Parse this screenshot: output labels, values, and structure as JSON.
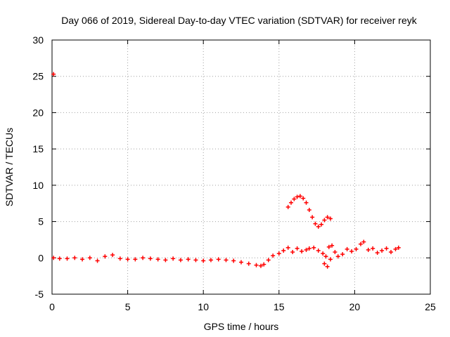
{
  "chart_data": {
    "type": "scatter",
    "title": "Day 066 of 2019, Sidereal Day-to-day VTEC variation (SDTVAR) for receiver reyk",
    "xlabel": "GPS time / hours",
    "ylabel": "SDTVAR / TECUs",
    "xlim": [
      0,
      25
    ],
    "ylim": [
      -5,
      30
    ],
    "xticks": [
      0,
      5,
      10,
      15,
      20,
      25
    ],
    "yticks": [
      -5,
      0,
      5,
      10,
      15,
      20,
      25,
      30
    ],
    "grid": true,
    "marker": "+",
    "series": [
      {
        "name": "SDTVAR",
        "color": "#ff0000",
        "x": [
          0.1,
          0.5,
          1.0,
          1.5,
          2.0,
          2.5,
          3.0,
          3.5,
          4.0,
          4.5,
          5.0,
          5.5,
          6.0,
          6.5,
          7.0,
          7.5,
          8.0,
          8.5,
          9.0,
          9.5,
          10.0,
          10.5,
          11.0,
          11.5,
          12.0,
          12.5,
          13.0,
          13.5,
          13.8,
          14.0,
          14.3,
          14.6,
          15.0,
          15.3,
          15.6,
          15.9,
          16.2,
          16.5,
          16.8,
          17.0,
          17.3,
          17.6,
          17.9,
          18.1,
          18.3,
          18.5,
          18.7,
          18.9,
          19.2,
          19.5,
          19.8,
          20.1,
          20.4,
          20.6,
          20.9,
          21.2,
          21.5,
          21.8,
          22.1,
          22.4,
          22.7,
          22.9,
          15.6,
          15.8,
          16.0,
          16.2,
          16.4,
          16.6,
          16.8,
          17.0,
          17.2,
          17.4,
          17.6,
          17.8,
          18.0,
          18.2,
          18.4,
          18.0,
          18.2,
          18.4,
          0.1
        ],
        "y": [
          0.0,
          -0.1,
          -0.1,
          0.0,
          -0.2,
          0.0,
          -0.4,
          0.2,
          0.4,
          -0.1,
          -0.2,
          -0.2,
          0.0,
          -0.1,
          -0.2,
          -0.3,
          -0.1,
          -0.3,
          -0.2,
          -0.3,
          -0.4,
          -0.3,
          -0.2,
          -0.3,
          -0.4,
          -0.6,
          -0.8,
          -1.0,
          -1.1,
          -0.9,
          -0.3,
          0.3,
          0.6,
          1.0,
          1.4,
          0.8,
          1.3,
          0.9,
          1.1,
          1.3,
          1.4,
          1.0,
          0.6,
          0.2,
          1.5,
          1.7,
          0.8,
          0.2,
          0.5,
          1.2,
          0.9,
          1.2,
          1.9,
          2.2,
          1.1,
          1.3,
          0.7,
          1.0,
          1.3,
          0.8,
          1.2,
          1.4,
          7.0,
          7.6,
          8.1,
          8.4,
          8.5,
          8.2,
          7.6,
          6.6,
          5.6,
          4.7,
          4.3,
          4.6,
          5.2,
          5.6,
          5.4,
          -0.8,
          -1.2,
          -0.2,
          25.3
        ]
      }
    ]
  }
}
